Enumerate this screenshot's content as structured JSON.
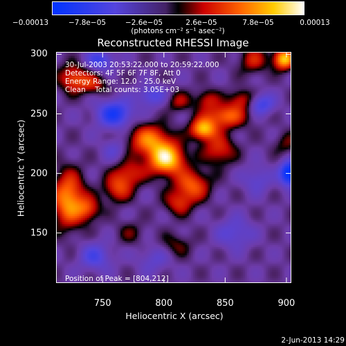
{
  "colorbar": {
    "ticks": [
      "−0.00013",
      "−7.8e−05",
      "−2.6e−05",
      "2.6e−05",
      "7.8e−05",
      "0.00013"
    ],
    "unit_label": "(photons cm⁻² s⁻¹ asec⁻²)",
    "colors": [
      "#0033ff",
      "#7744bb",
      "#ee0000",
      "#ff8800",
      "#ffffff"
    ]
  },
  "chart_data": {
    "type": "heatmap",
    "title": "Reconstructed RHESSI Image",
    "xlabel": "Heliocentric X (arcsec)",
    "ylabel": "Heliocentric Y (arcsec)",
    "xlim": [
      712,
      904
    ],
    "ylim": [
      108,
      302
    ],
    "x_ticks": [
      750,
      800,
      850,
      900
    ],
    "y_ticks": [
      150,
      200,
      250,
      300
    ],
    "x_tick_labels": [
      "750",
      "800",
      "850",
      "900"
    ],
    "y_tick_labels": [
      "150",
      "200",
      "250",
      "300"
    ],
    "peak": {
      "x": 804,
      "y": 212
    },
    "info_lines": [
      "30-Jul-2003 20:53:22.000 to 20:59:22.000",
      "Detectors: 4F 5F 6F 7F 8F, Att 0",
      "Energy Range: 12.0 - 25.0 keV",
      "Clean    Total counts: 3.05E+03"
    ],
    "peak_text": "Position of Peak = [804,212]",
    "colorbar_range": [
      -0.00013,
      0.00013
    ],
    "sources": [
      {
        "x": 802,
        "y": 212,
        "value": 0.00013,
        "sx": 10,
        "sy": 9
      },
      {
        "x": 788,
        "y": 228,
        "value": 8.5e-05,
        "sx": 12,
        "sy": 9
      },
      {
        "x": 832,
        "y": 237,
        "value": 0.00011,
        "sx": 7,
        "sy": 6
      },
      {
        "x": 850,
        "y": 248,
        "value": 8e-05,
        "sx": 12,
        "sy": 7
      },
      {
        "x": 845,
        "y": 220,
        "value": 6e-05,
        "sx": 9,
        "sy": 9
      },
      {
        "x": 823,
        "y": 190,
        "value": 7.5e-05,
        "sx": 10,
        "sy": 9
      },
      {
        "x": 812,
        "y": 175,
        "value": 5e-05,
        "sx": 8,
        "sy": 7
      },
      {
        "x": 772,
        "y": 200,
        "value": 5.5e-05,
        "sx": 9,
        "sy": 8
      },
      {
        "x": 762,
        "y": 187,
        "value": 6e-05,
        "sx": 8,
        "sy": 8
      },
      {
        "x": 722,
        "y": 178,
        "value": 0.0001,
        "sx": 9,
        "sy": 16
      },
      {
        "x": 738,
        "y": 170,
        "value": 6e-05,
        "sx": 7,
        "sy": 7
      },
      {
        "x": 726,
        "y": 280,
        "value": 7e-05,
        "sx": 8,
        "sy": 8
      },
      {
        "x": 742,
        "y": 275,
        "value": 5e-05,
        "sx": 8,
        "sy": 6
      },
      {
        "x": 898,
        "y": 296,
        "value": 0.00012,
        "sx": 6,
        "sy": 6
      },
      {
        "x": 873,
        "y": 295,
        "value": 5e-05,
        "sx": 8,
        "sy": 8
      },
      {
        "x": 863,
        "y": 262,
        "value": 5e-05,
        "sx": 7,
        "sy": 6
      },
      {
        "x": 835,
        "y": 262,
        "value": 4.5e-05,
        "sx": 7,
        "sy": 6
      },
      {
        "x": 812,
        "y": 260,
        "value": 4e-05,
        "sx": 7,
        "sy": 6
      },
      {
        "x": 900,
        "y": 225,
        "value": 3e-05,
        "sx": 7,
        "sy": 7
      },
      {
        "x": 810,
        "y": 140,
        "value": 3e-05,
        "sx": 9,
        "sy": 7
      },
      {
        "x": 773,
        "y": 150,
        "value": 2.5e-05,
        "sx": 8,
        "sy": 7
      },
      {
        "x": 760,
        "y": 250,
        "value": -8.5e-05,
        "sx": 10,
        "sy": 8
      },
      {
        "x": 748,
        "y": 295,
        "value": -6e-05,
        "sx": 8,
        "sy": 6
      },
      {
        "x": 902,
        "y": 200,
        "value": -0.00012,
        "sx": 5,
        "sy": 7
      },
      {
        "x": 880,
        "y": 258,
        "value": -6e-05,
        "sx": 7,
        "sy": 6
      },
      {
        "x": 790,
        "y": 265,
        "value": -5e-05,
        "sx": 8,
        "sy": 6
      },
      {
        "x": 744,
        "y": 130,
        "value": -5e-05,
        "sx": 9,
        "sy": 8
      },
      {
        "x": 858,
        "y": 150,
        "value": -4e-05,
        "sx": 10,
        "sy": 9
      },
      {
        "x": 876,
        "y": 195,
        "value": -3.5e-05,
        "sx": 8,
        "sy": 8
      },
      {
        "x": 760,
        "y": 220,
        "value": -3e-05,
        "sx": 7,
        "sy": 7
      },
      {
        "x": 792,
        "y": 128,
        "value": -3e-05,
        "sx": 9,
        "sy": 8
      }
    ]
  },
  "footer": {
    "date": "2-Jun-2013 14:29"
  }
}
